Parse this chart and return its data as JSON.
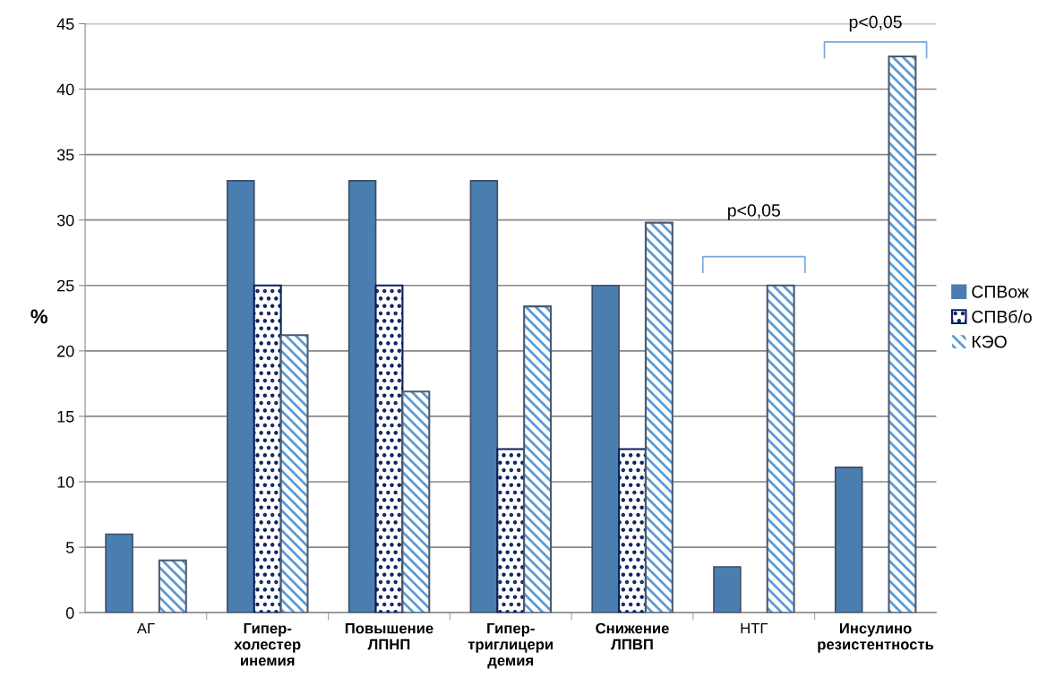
{
  "chart_data": {
    "type": "bar",
    "ylabel": "%",
    "categories": [
      "АГ",
      "Гипер-\nхолестер\nинемия",
      "Повышение\nЛПНП",
      "Гипер-\nтриглицери\nдемия",
      "Снижение\nЛПВП",
      "НТГ",
      "Инсулино\nрезистентность"
    ],
    "series": [
      {
        "name": "СПВож",
        "color": "#4a7eb0",
        "values": [
          6,
          33,
          33,
          33,
          25,
          3.5,
          11.1
        ]
      },
      {
        "name": "СПВб/о",
        "color": "#0a1f5c",
        "values": [
          null,
          25,
          25,
          12.5,
          12.5,
          null,
          null
        ]
      },
      {
        "name": "КЭО",
        "color": "#5b9bd5",
        "values": [
          4,
          21.2,
          16.9,
          23.4,
          29.8,
          25,
          42.5
        ]
      }
    ],
    "ylim": [
      0,
      45
    ],
    "yticks": [
      0,
      5,
      10,
      15,
      20,
      25,
      30,
      35,
      40,
      45
    ],
    "grid": "y",
    "legend": "right",
    "annotations": [
      "p<0,05",
      "p<0,05"
    ]
  }
}
